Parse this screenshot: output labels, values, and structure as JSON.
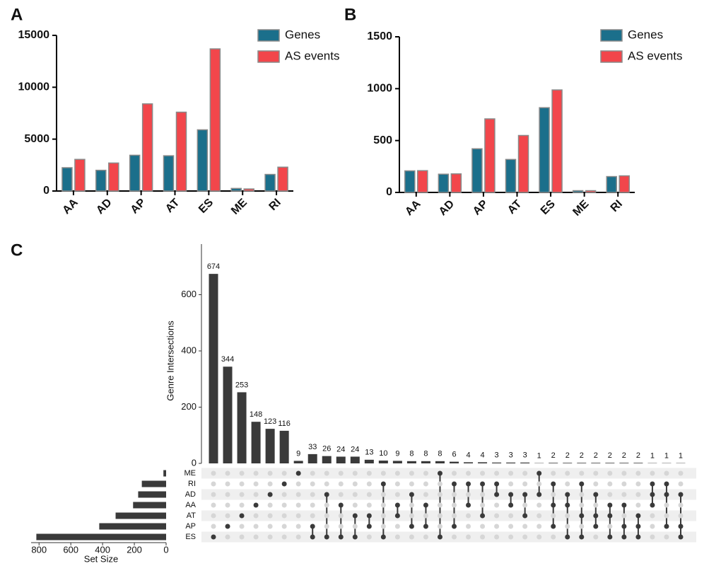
{
  "chart_data": [
    {
      "panel": "A",
      "type": "bar",
      "categories": [
        "AA",
        "AD",
        "AP",
        "AT",
        "ES",
        "ME",
        "RI"
      ],
      "series": [
        {
          "name": "Genes",
          "color": "#1b6f8b",
          "values": [
            2250,
            2000,
            3450,
            3400,
            5900,
            250,
            1600
          ]
        },
        {
          "name": "AS events",
          "color": "#f2464b",
          "values": [
            3050,
            2700,
            8400,
            7600,
            13700,
            200,
            2300
          ]
        }
      ],
      "ylim": [
        0,
        15000
      ],
      "yticks": [
        0,
        5000,
        10000,
        15000
      ],
      "legend": "upper right"
    },
    {
      "panel": "B",
      "type": "bar",
      "categories": [
        "AA",
        "AD",
        "AP",
        "AT",
        "ES",
        "ME",
        "RI"
      ],
      "series": [
        {
          "name": "Genes",
          "color": "#1b6f8b",
          "values": [
            208,
            176,
            421,
            318,
            817,
            17,
            153
          ]
        },
        {
          "name": "AS events",
          "color": "#f2464b",
          "values": [
            210,
            179,
            709,
            549,
            988,
            17,
            160
          ]
        }
      ],
      "ylim": [
        0,
        1500
      ],
      "yticks": [
        0,
        500,
        1000,
        1500
      ],
      "legend": "upper right"
    },
    {
      "panel": "C",
      "type": "upset",
      "y_label": "Genre Intersections",
      "x_label": "Set Size",
      "color": "#3a3a3a",
      "sets": [
        "ME",
        "RI",
        "AD",
        "AA",
        "AT",
        "AP",
        "ES"
      ],
      "set_sizes": [
        17,
        153,
        176,
        208,
        318,
        421,
        817
      ],
      "values": [
        674,
        344,
        253,
        148,
        123,
        116,
        9,
        33,
        26,
        24,
        24,
        13,
        10,
        9,
        8,
        8,
        8,
        6,
        4,
        4,
        3,
        3,
        3,
        1,
        2,
        2,
        2,
        2,
        2,
        2,
        2,
        1,
        1,
        1
      ],
      "members": [
        [
          "ES"
        ],
        [
          "AP"
        ],
        [
          "AT"
        ],
        [
          "AA"
        ],
        [
          "AD"
        ],
        [
          "RI"
        ],
        [
          "ME"
        ],
        [
          "AP",
          "ES"
        ],
        [
          "AD",
          "ES"
        ],
        [
          "AA",
          "ES"
        ],
        [
          "AT",
          "ES"
        ],
        [
          "AT",
          "AP"
        ],
        [
          "RI",
          "ES"
        ],
        [
          "AA",
          "AT"
        ],
        [
          "AD",
          "AP"
        ],
        [
          "AA",
          "AP"
        ],
        [
          "ME",
          "ES"
        ],
        [
          "RI",
          "AP"
        ],
        [
          "RI",
          "AA"
        ],
        [
          "RI",
          "AT"
        ],
        [
          "RI",
          "AD"
        ],
        [
          "AD",
          "AA"
        ],
        [
          "AD",
          "AT"
        ],
        [
          "ME",
          "AD"
        ],
        [
          "RI",
          "AA",
          "AP"
        ],
        [
          "AD",
          "AA",
          "ES"
        ],
        [
          "RI",
          "AT",
          "ES"
        ],
        [
          "AD",
          "AT",
          "AP"
        ],
        [
          "AA",
          "AT",
          "ES"
        ],
        [
          "AA",
          "AP",
          "ES"
        ],
        [
          "AT",
          "AP",
          "ES"
        ],
        [
          "RI",
          "AD",
          "AA"
        ],
        [
          "RI",
          "AD",
          "AP"
        ],
        [
          "AD",
          "AP",
          "ES"
        ]
      ],
      "ylim": [
        0,
        780
      ],
      "yticks": [
        0,
        200,
        400,
        600
      ],
      "xlim": [
        0,
        850
      ],
      "xticks": [
        0,
        200,
        400,
        600,
        800
      ]
    }
  ]
}
